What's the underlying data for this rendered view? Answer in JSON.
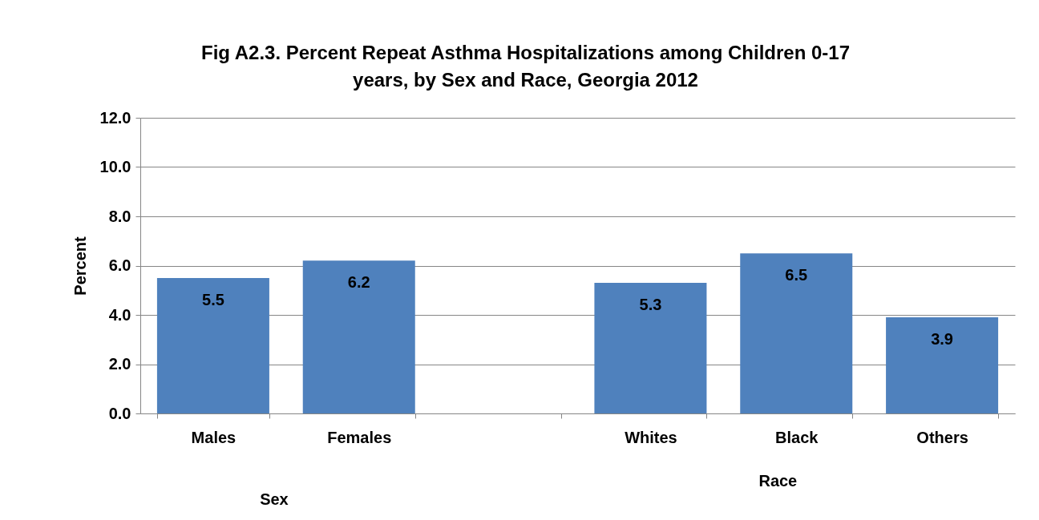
{
  "chart_data": {
    "type": "bar",
    "title": "Fig A2.3. Percent Repeat Asthma Hospitalizations among Children 0-17 years, by Sex and Race, Georgia 2012",
    "ylabel": "Percent",
    "categories": [
      "Males",
      "Females",
      null,
      "Whites",
      "Black",
      "Others"
    ],
    "values": [
      5.5,
      6.2,
      null,
      5.3,
      6.5,
      3.9
    ],
    "color": "#4f81bd",
    "ylim": [
      0,
      12
    ],
    "yticks": [
      {
        "value": 0,
        "label": "0.0"
      },
      {
        "value": 2,
        "label": "2.0"
      },
      {
        "value": 4,
        "label": "4.0"
      },
      {
        "value": 6,
        "label": "6.0"
      },
      {
        "value": 8,
        "label": "8.0"
      },
      {
        "value": 10,
        "label": "10.0"
      },
      {
        "value": 12,
        "label": "12.0"
      }
    ],
    "grid": "y",
    "data_labels": true,
    "annotations": [
      "Sex",
      "Race"
    ]
  }
}
